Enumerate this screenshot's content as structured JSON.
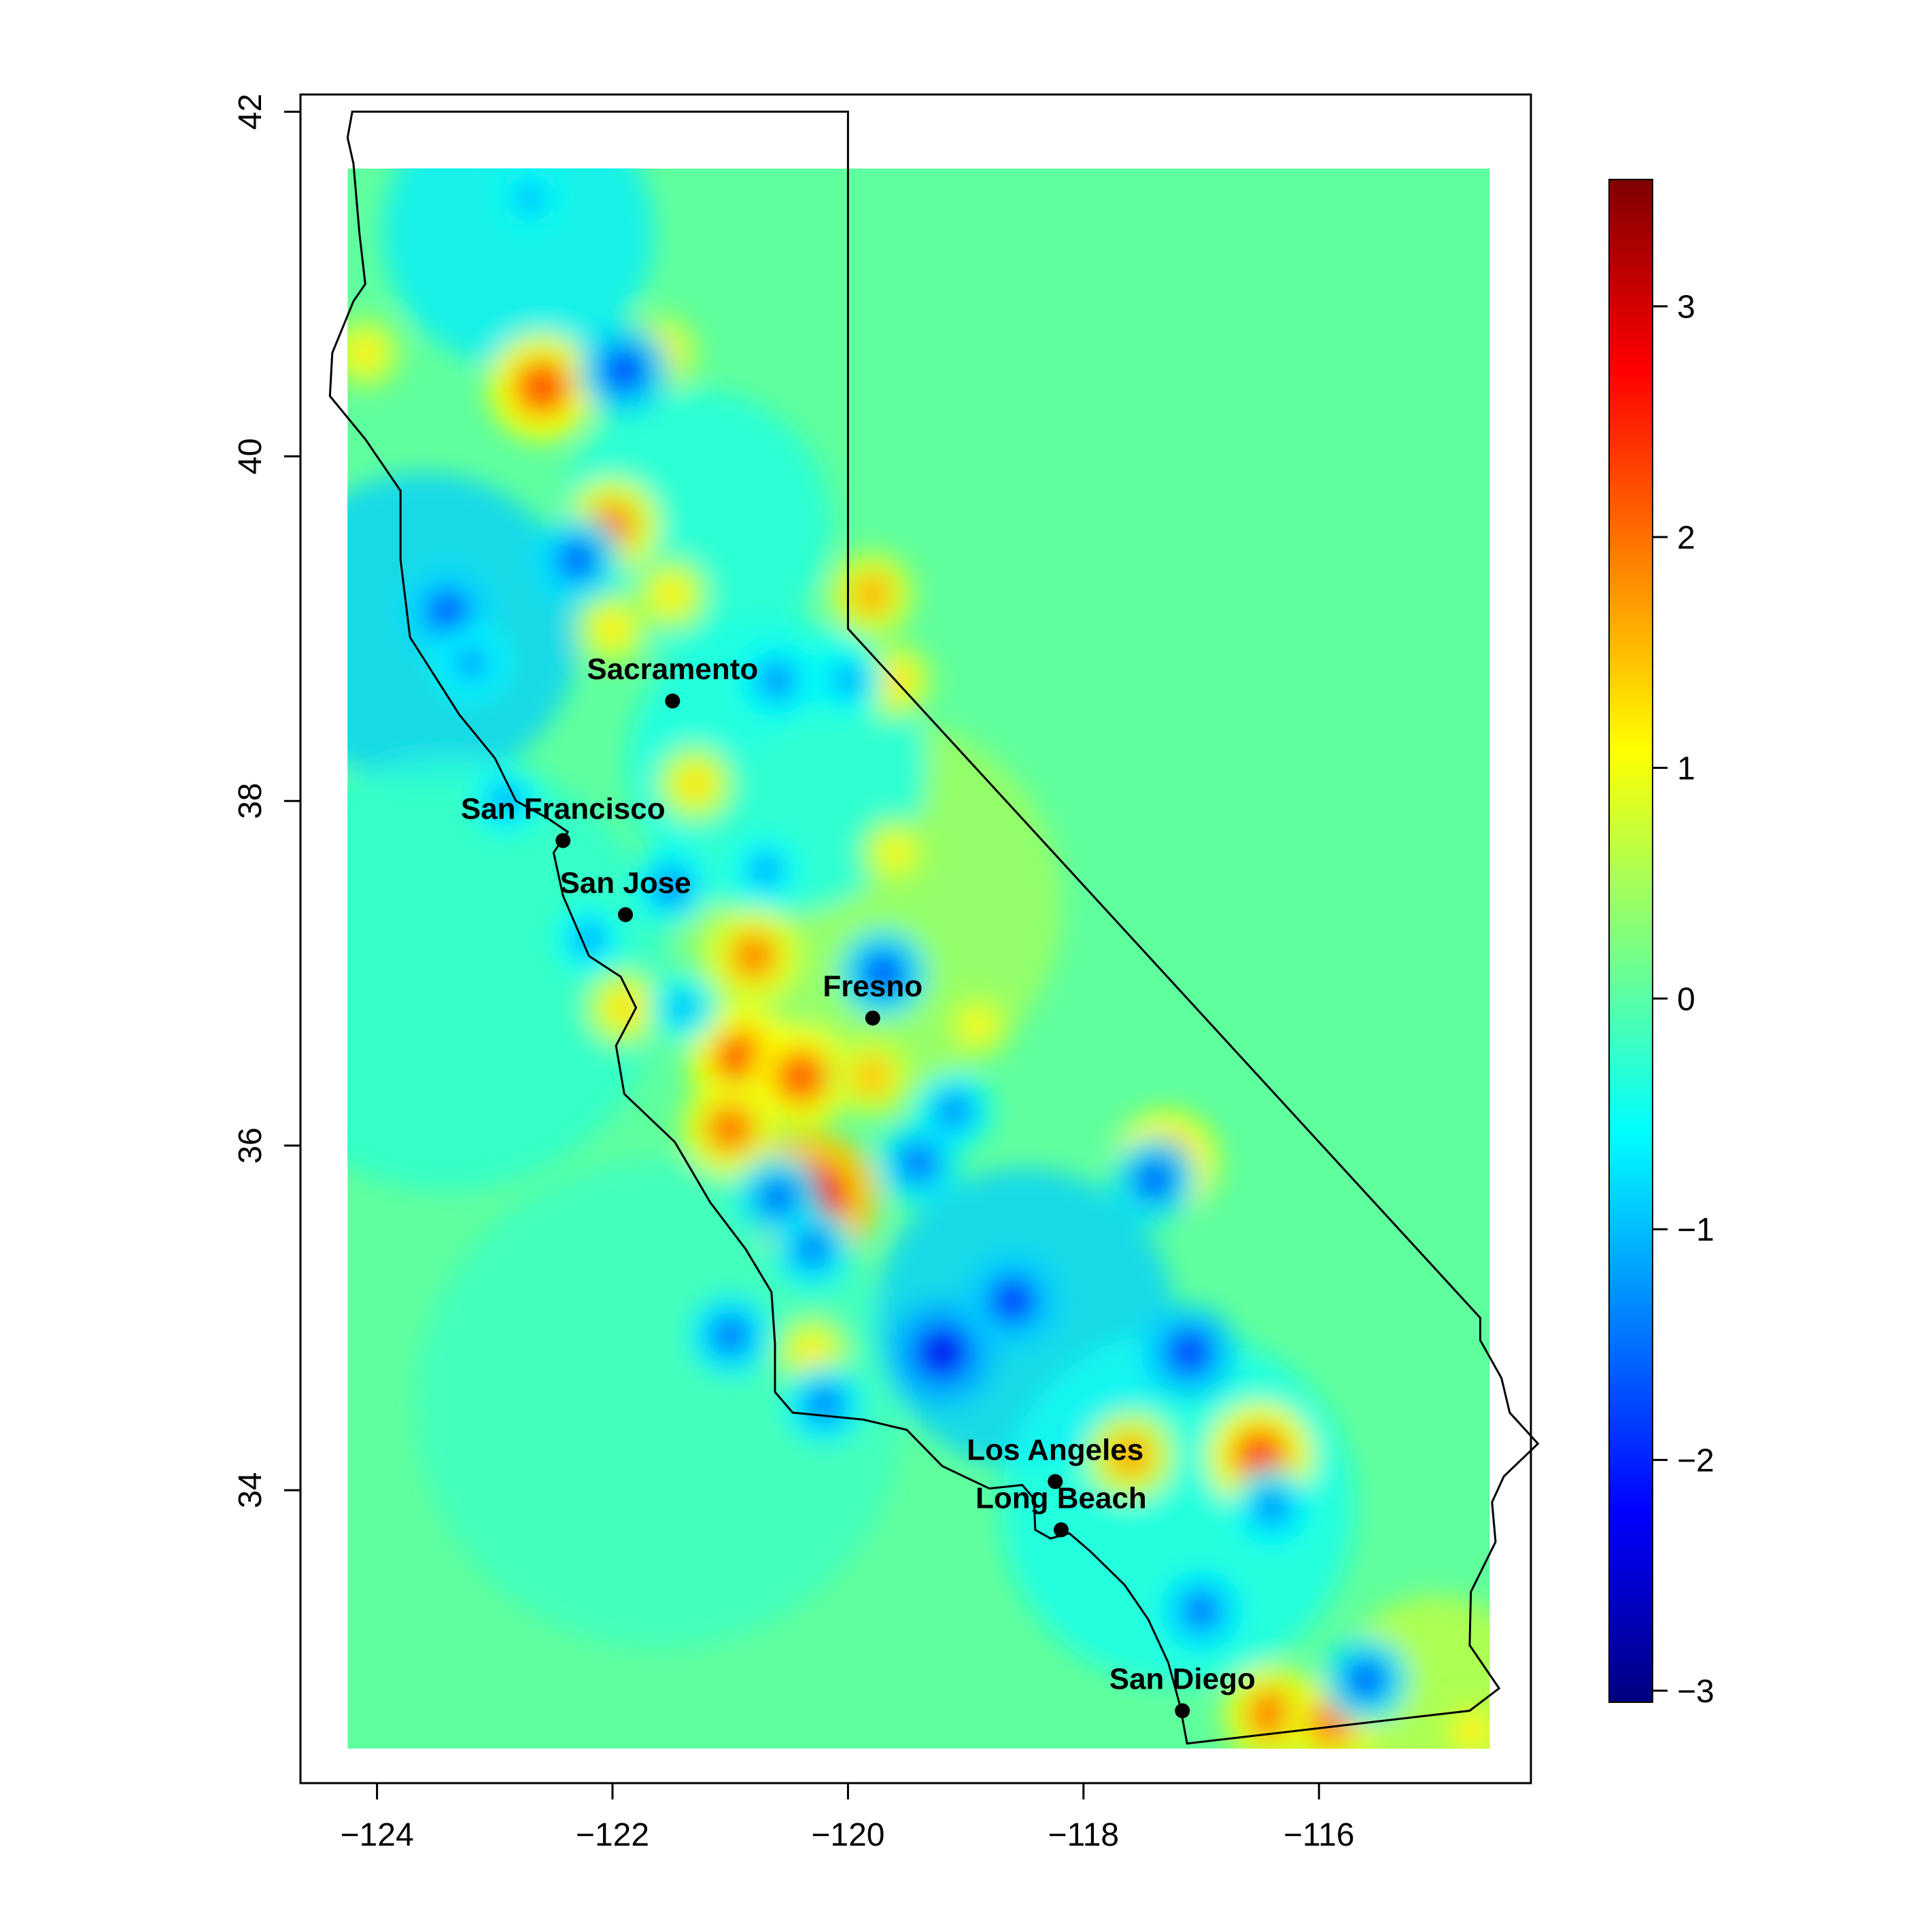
{
  "map": {
    "x_ticks": [
      "−124",
      "−122",
      "−120",
      "−118",
      "−116"
    ],
    "x_tick_values": [
      -124,
      -122,
      -120,
      -118,
      -116
    ],
    "y_ticks": [
      "34",
      "36",
      "38",
      "40",
      "42"
    ],
    "y_tick_values": [
      34,
      36,
      38,
      40,
      42
    ],
    "xlim": [
      -124.65,
      -114.2
    ],
    "ylim": [
      32.3,
      42.1
    ],
    "field_extent": {
      "lon": [
        -124.25,
        -114.55
      ],
      "lat": [
        32.5,
        41.67
      ]
    }
  },
  "colorbar": {
    "ticks": [
      "3",
      "2",
      "1",
      "0",
      "−1",
      "−2",
      "−3"
    ],
    "tick_values": [
      3,
      2,
      1,
      0,
      -1,
      -2,
      -3
    ],
    "range": [
      -3.05,
      3.55
    ],
    "palette": [
      "#00007f",
      "#0000ff",
      "#007fff",
      "#00ffff",
      "#7fff7f",
      "#ffff00",
      "#ff7f00",
      "#ff0000",
      "#7f0000"
    ]
  },
  "cities": [
    {
      "name": "Sacramento",
      "lon": -121.49,
      "lat": 38.58
    },
    {
      "name": "San Francisco",
      "lon": -122.42,
      "lat": 37.77
    },
    {
      "name": "San Jose",
      "lon": -121.89,
      "lat": 37.34
    },
    {
      "name": "Fresno",
      "lon": -119.79,
      "lat": 36.74
    },
    {
      "name": "Los Angeles",
      "lon": -118.24,
      "lat": 34.05
    },
    {
      "name": "Long Beach",
      "lon": -118.19,
      "lat": 33.77
    },
    {
      "name": "San Diego",
      "lon": -117.16,
      "lat": 32.72
    }
  ],
  "anomalies": [
    {
      "lon": -120.9,
      "lat": 36.5,
      "value": 2.4
    },
    {
      "lon": -120.4,
      "lat": 36.4,
      "value": 2.3
    },
    {
      "lon": -121.0,
      "lat": 36.1,
      "value": 2.1
    },
    {
      "lon": -120.8,
      "lat": 37.1,
      "value": 2.0
    },
    {
      "lon": -120.3,
      "lat": 35.7,
      "value": 3.2
    },
    {
      "lon": -122.6,
      "lat": 40.4,
      "value": 2.4
    },
    {
      "lon": -121.6,
      "lat": 40.6,
      "value": 1.4
    },
    {
      "lon": -122.0,
      "lat": 39.6,
      "value": 2.0
    },
    {
      "lon": -121.5,
      "lat": 39.2,
      "value": 1.3
    },
    {
      "lon": -119.8,
      "lat": 39.2,
      "value": 1.7
    },
    {
      "lon": -119.6,
      "lat": 38.7,
      "value": 1.4
    },
    {
      "lon": -119.6,
      "lat": 37.7,
      "value": 1.2
    },
    {
      "lon": -118.9,
      "lat": 36.7,
      "value": 1.2
    },
    {
      "lon": -119.8,
      "lat": 36.4,
      "value": 1.6
    },
    {
      "lon": -117.3,
      "lat": 35.9,
      "value": 2.3
    },
    {
      "lon": -116.5,
      "lat": 34.2,
      "value": 2.4
    },
    {
      "lon": -116.4,
      "lat": 32.7,
      "value": 2.1
    },
    {
      "lon": -115.9,
      "lat": 32.65,
      "value": 2.0
    },
    {
      "lon": -114.7,
      "lat": 32.6,
      "value": 1.3
    },
    {
      "lon": -117.6,
      "lat": 34.2,
      "value": 1.8
    },
    {
      "lon": -121.9,
      "lat": 36.8,
      "value": 1.4
    },
    {
      "lon": -121.3,
      "lat": 38.1,
      "value": 1.4
    },
    {
      "lon": -122.0,
      "lat": 39.0,
      "value": 1.3
    },
    {
      "lon": -124.1,
      "lat": 40.6,
      "value": 1.3
    },
    {
      "lon": -120.3,
      "lat": 34.8,
      "value": 1.3
    },
    {
      "lon": -123.4,
      "lat": 39.1,
      "value": -1.8
    },
    {
      "lon": -123.2,
      "lat": 38.8,
      "value": -1.3
    },
    {
      "lon": -121.9,
      "lat": 40.5,
      "value": -1.9
    },
    {
      "lon": -122.3,
      "lat": 39.4,
      "value": -1.7
    },
    {
      "lon": -122.7,
      "lat": 41.5,
      "value": -1.1
    },
    {
      "lon": -120.6,
      "lat": 38.7,
      "value": -1.4
    },
    {
      "lon": -120.0,
      "lat": 38.7,
      "value": -1.2
    },
    {
      "lon": -119.7,
      "lat": 37.0,
      "value": -1.8
    },
    {
      "lon": -119.1,
      "lat": 36.2,
      "value": -1.4
    },
    {
      "lon": -119.4,
      "lat": 35.9,
      "value": -1.6
    },
    {
      "lon": -120.6,
      "lat": 35.7,
      "value": -1.6
    },
    {
      "lon": -120.3,
      "lat": 35.4,
      "value": -1.5
    },
    {
      "lon": -121.0,
      "lat": 34.9,
      "value": -1.6
    },
    {
      "lon": -119.2,
      "lat": 34.8,
      "value": -2.4
    },
    {
      "lon": -118.6,
      "lat": 35.1,
      "value": -2.0
    },
    {
      "lon": -117.4,
      "lat": 35.8,
      "value": -1.7
    },
    {
      "lon": -117.1,
      "lat": 34.8,
      "value": -2.0
    },
    {
      "lon": -120.2,
      "lat": 34.5,
      "value": -1.5
    },
    {
      "lon": -117.0,
      "lat": 33.3,
      "value": -1.6
    },
    {
      "lon": -115.6,
      "lat": 32.9,
      "value": -1.7
    },
    {
      "lon": -116.4,
      "lat": 33.9,
      "value": -1.4
    },
    {
      "lon": -121.5,
      "lat": 37.5,
      "value": -1.4
    },
    {
      "lon": -120.7,
      "lat": 37.6,
      "value": -1.2
    },
    {
      "lon": -122.2,
      "lat": 37.2,
      "value": -1.2
    },
    {
      "lon": -121.4,
      "lat": 36.8,
      "value": -1.1
    },
    {
      "lon": -122.9,
      "lat": 38.0,
      "value": -1.2
    }
  ]
}
